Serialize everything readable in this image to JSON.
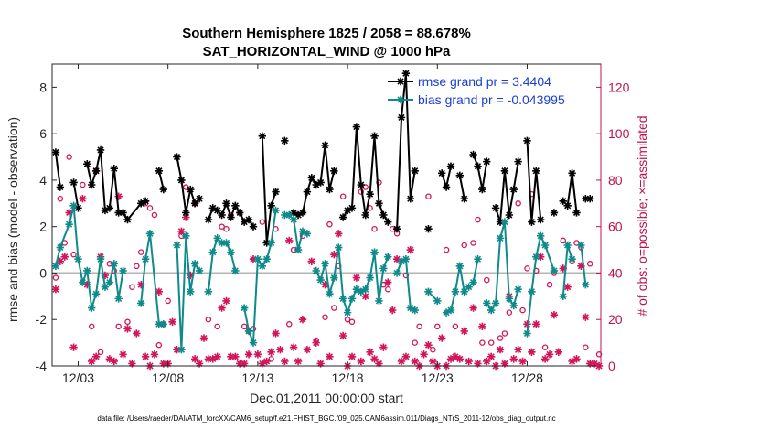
{
  "chart_data": {
    "type": "line",
    "title": "Southern Hemisphere 1825 / 2058 = 88.678%",
    "subtitle": "SAT_HORIZONTAL_WIND @ 1000 hPa",
    "xlabel": "Dec.01,2011 00:00:00 start",
    "ylabel": "rmse and bias (model - observation)",
    "y2label": "# of obs: o=possible; ×=assimilated",
    "footnote": "data file: /Users/raeder/DAI/ATM_forcXX/CAM6_setup/f.e21.FHIST_BGC.f09_025.CAM6assim.011/Diags_NTrS_2011-12/obs_diag_output.nc",
    "xlim": [
      1.55,
      32.1
    ],
    "ylim": [
      -4,
      9
    ],
    "y2lim": [
      0,
      130
    ],
    "xticks": [
      3,
      8,
      13,
      18,
      23,
      28
    ],
    "xticklabels": [
      "12/03",
      "12/08",
      "12/13",
      "12/18",
      "12/23",
      "12/28"
    ],
    "yticks": [
      -4,
      -2,
      0,
      2,
      4,
      6,
      8
    ],
    "y2ticks": [
      0,
      20,
      40,
      60,
      80,
      100,
      120
    ],
    "legend_position": "top-right",
    "colors": {
      "rmse": "#000000",
      "bias": "#0f8a8a",
      "obs": "#d4145a",
      "zero": "#b4b4b4",
      "legend_text": "#1a3fd6",
      "right_axis": "#c0104f"
    },
    "series": [
      {
        "name": "rmse grand pr = 3.4404",
        "color": "#000000",
        "x": [
          1.75,
          2.0,
          2.5,
          2.75,
          3.0,
          3.25,
          3.5,
          3.75,
          4.0,
          4.25,
          4.5,
          4.75,
          5.0,
          5.25,
          5.5,
          5.75,
          6.5,
          6.75,
          7.0,
          7.5,
          7.75,
          8.0,
          8.5,
          8.75,
          9.0,
          9.25,
          9.5,
          9.75,
          10.0,
          10.25,
          10.5,
          10.75,
          11.0,
          11.25,
          11.5,
          11.75,
          12.0,
          12.25,
          12.5,
          12.75,
          13.0,
          13.25,
          13.5,
          13.75,
          14.0,
          14.25,
          14.5,
          14.75,
          15.0,
          15.25,
          15.5,
          15.75,
          16.0,
          16.25,
          16.5,
          16.75,
          17.0,
          17.25,
          17.5,
          17.75,
          18.0,
          18.25,
          18.5,
          18.75,
          19.0,
          19.25,
          19.5,
          19.75,
          20.0,
          20.25,
          20.5,
          20.75,
          21.0,
          21.25,
          21.5,
          21.75,
          22.0,
          22.5,
          23.0,
          23.25,
          23.5,
          23.75,
          24.0,
          24.25,
          24.5,
          24.75,
          25.0,
          25.25,
          25.5,
          25.75,
          26.0,
          26.25,
          26.5,
          26.75,
          27.0,
          27.25,
          27.5,
          27.75,
          28.0,
          28.25,
          28.5,
          28.75,
          29.0,
          29.5,
          29.75,
          30.0,
          30.25,
          30.5,
          30.75,
          31.0,
          31.25,
          31.5,
          31.75
        ],
        "values": [
          5.2,
          3.7,
          null,
          3.9,
          2.8,
          null,
          4.7,
          3.8,
          4.4,
          5.3,
          2.7,
          2.8,
          4.5,
          2.6,
          2.6,
          2.3,
          3.0,
          3.1,
          null,
          4.4,
          3.6,
          null,
          5.0,
          4.0,
          2.6,
          3.6,
          3.0,
          3.2,
          null,
          2.3,
          2.8,
          2.7,
          2.5,
          3.0,
          2.4,
          2.9,
          2.6,
          2.2,
          2.3,
          2.0,
          null,
          5.9,
          1.3,
          2.9,
          3.5,
          null,
          5.7,
          null,
          2.6,
          2.5,
          2.6,
          3.5,
          4.1,
          3.8,
          3.9,
          5.5,
          3.6,
          4.4,
          null,
          2.4,
          2.7,
          2.8,
          6.3,
          3.8,
          2.5,
          3.4,
          5.9,
          3.0,
          2.5,
          2.2,
          null,
          1.9,
          6.7,
          8.6,
          3.2,
          4.4,
          null,
          1.9,
          null,
          4.3,
          3.7,
          4.6,
          null,
          4.2,
          3.2,
          null,
          5.1,
          4.6,
          3.6,
          4.8,
          null,
          2.8,
          2.2,
          4.4,
          2.5,
          3.6,
          4.8,
          null,
          5.7,
          2.2,
          4.4,
          2.3,
          null,
          2.6,
          null,
          3.1,
          2.9,
          4.3,
          2.6,
          null,
          3.2,
          3.2,
          null
        ],
        "marker": "*",
        "linewidth": 2
      },
      {
        "name": "bias grand pr = -0.043995",
        "color": "#0f8a8a",
        "x": [
          1.75,
          2.0,
          2.5,
          2.75,
          3.0,
          3.25,
          3.5,
          3.75,
          4.0,
          4.25,
          4.5,
          4.75,
          5.0,
          5.25,
          5.5,
          5.75,
          6.5,
          6.75,
          7.0,
          7.5,
          7.75,
          8.0,
          8.5,
          8.75,
          9.0,
          9.25,
          9.5,
          9.75,
          10.0,
          10.25,
          10.5,
          10.75,
          11.0,
          11.25,
          11.5,
          11.75,
          12.0,
          12.25,
          12.5,
          12.75,
          13.0,
          13.25,
          13.5,
          13.75,
          14.0,
          14.25,
          14.5,
          14.75,
          15.0,
          15.25,
          15.5,
          15.75,
          16.0,
          16.25,
          16.5,
          16.75,
          17.0,
          17.25,
          17.5,
          17.75,
          18.0,
          18.25,
          18.5,
          18.75,
          19.0,
          19.25,
          19.5,
          19.75,
          20.0,
          20.25,
          20.5,
          20.75,
          21.0,
          21.25,
          21.5,
          21.75,
          22.0,
          22.5,
          23.0,
          23.25,
          23.5,
          23.75,
          24.0,
          24.25,
          24.5,
          24.75,
          25.0,
          25.25,
          25.5,
          25.75,
          26.0,
          26.25,
          26.5,
          26.75,
          27.0,
          27.25,
          27.5,
          27.75,
          28.0,
          28.25,
          28.5,
          28.75,
          29.0,
          29.5,
          29.75,
          30.0,
          30.25,
          30.5,
          30.75,
          31.0,
          31.25,
          31.5,
          31.75
        ],
        "values": [
          0.3,
          1.1,
          2.1,
          2.9,
          0.6,
          -0.4,
          0.1,
          -1.5,
          -0.9,
          0.6,
          -0.6,
          -0.4,
          0.4,
          -1.1,
          0.1,
          null,
          -1.3,
          0.6,
          1.7,
          -2.2,
          -2.2,
          null,
          1.2,
          -3.3,
          1.6,
          -0.8,
          0.4,
          0.1,
          null,
          -0.8,
          0.9,
          1.5,
          1.3,
          1.3,
          0.9,
          0.1,
          null,
          -1.5,
          -2.5,
          -3.0,
          0.6,
          0.3,
          0.6,
          1.3,
          2.7,
          null,
          2.5,
          2.5,
          2.3,
          1.0,
          1.8,
          1.7,
          null,
          0.1,
          -0.3,
          0.4,
          -0.9,
          -0.2,
          1.1,
          -1.1,
          -1.7,
          -1.1,
          -0.7,
          -0.8,
          -0.7,
          -0.2,
          0.9,
          -1.2,
          0.2,
          0.7,
          null,
          0.0,
          0.5,
          0.6,
          -1.5,
          -1.6,
          null,
          -0.8,
          -1.2,
          null,
          -1.7,
          -1.6,
          -0.8,
          0.3,
          -0.8,
          -0.6,
          -0.4,
          0.6,
          null,
          -1.3,
          -1.6,
          -1.3,
          1.5,
          2.2,
          -1.1,
          -1.4,
          -0.7,
          null,
          -2.6,
          -0.8,
          0.7,
          1.6,
          1.2,
          0.1,
          null,
          -1.0,
          1.2,
          0.6,
          null,
          1.2,
          -0.5,
          null,
          null
        ],
        "marker": "*",
        "linewidth": 2
      }
    ],
    "obs_possible": {
      "x": [
        1.75,
        2.0,
        2.25,
        2.5,
        2.75,
        3.25,
        3.75,
        4.0,
        4.25,
        4.75,
        5.0,
        5.25,
        5.75,
        6.0,
        6.25,
        6.5,
        6.75,
        7.0,
        7.25,
        7.5,
        7.75,
        8.0,
        8.75,
        9.0,
        9.5,
        10.25,
        10.75,
        11.0,
        11.25,
        11.5,
        12.0,
        12.25,
        12.5,
        12.75,
        13.25,
        13.75,
        14.0,
        14.75,
        15.0,
        15.5,
        16.25,
        16.75,
        17.0,
        17.25,
        17.5,
        17.75,
        18.0,
        18.25,
        18.75,
        19.0,
        19.25,
        19.5,
        19.75,
        20.0,
        20.25,
        20.5,
        20.75,
        21.25,
        21.75,
        22.0,
        22.5,
        22.75,
        23.0,
        23.5,
        24.0,
        24.5,
        25.0,
        25.25,
        25.5,
        25.75,
        26.0,
        26.5,
        26.75,
        27.0,
        27.5,
        27.75,
        28.0,
        28.25,
        28.5,
        29.0,
        29.25,
        29.5,
        30.0,
        30.5,
        30.75,
        31.0,
        31.25,
        31.5,
        32.0
      ],
      "values": [
        38,
        72,
        53,
        90,
        48,
        78,
        17,
        84,
        6,
        44,
        41,
        17,
        19,
        34,
        43,
        49,
        70,
        68,
        65,
        9,
        18,
        28,
        56,
        77,
        70,
        20,
        17,
        60,
        59,
        65,
        66,
        17,
        15,
        16,
        62,
        3,
        59,
        18,
        50,
        56,
        11,
        21,
        61,
        25,
        43,
        73,
        20,
        19,
        75,
        77,
        68,
        59,
        79,
        35,
        33,
        59,
        57,
        39,
        10,
        17,
        73,
        7,
        17,
        50,
        17,
        52,
        53,
        63,
        10,
        37,
        10,
        12,
        14,
        23,
        70,
        24,
        42,
        74,
        41,
        8,
        35,
        40,
        54,
        45,
        53,
        51,
        8,
        44,
        5
      ]
    },
    "obs_assimilated": {
      "x": [
        1.75,
        2.0,
        2.25,
        2.5,
        2.75,
        3.25,
        3.5,
        3.75,
        4.0,
        4.25,
        4.5,
        4.75,
        5.0,
        5.25,
        5.5,
        5.75,
        6.0,
        6.25,
        6.5,
        6.75,
        7.0,
        7.25,
        7.5,
        7.75,
        8.0,
        8.25,
        8.5,
        8.75,
        9.0,
        9.25,
        9.5,
        9.75,
        10.0,
        10.25,
        10.5,
        10.75,
        11.0,
        11.25,
        11.5,
        11.75,
        12.0,
        12.25,
        12.5,
        12.75,
        13.0,
        13.25,
        13.5,
        13.75,
        14.0,
        14.25,
        14.5,
        14.75,
        15.0,
        15.25,
        15.5,
        15.75,
        16.0,
        16.25,
        16.5,
        16.75,
        17.0,
        17.25,
        17.5,
        17.75,
        18.0,
        18.25,
        18.5,
        18.75,
        19.0,
        19.25,
        19.5,
        19.75,
        20.0,
        20.25,
        20.5,
        20.75,
        21.0,
        21.25,
        21.5,
        21.75,
        22.0,
        22.25,
        22.5,
        22.75,
        23.0,
        23.25,
        23.5,
        23.75,
        24.0,
        24.25,
        24.5,
        24.75,
        25.0,
        25.25,
        25.5,
        25.75,
        26.0,
        26.25,
        26.5,
        26.75,
        27.0,
        27.25,
        27.5,
        27.75,
        28.0,
        28.25,
        28.5,
        28.75,
        29.0,
        29.25,
        29.5,
        29.75,
        30.0,
        30.25,
        30.5,
        30.75,
        31.0,
        31.25,
        31.5,
        31.75,
        32.0
      ],
      "values": [
        33,
        45,
        47,
        66,
        8,
        72,
        35,
        2,
        4,
        47,
        39,
        3,
        2,
        73,
        5,
        16,
        1,
        14,
        35,
        4,
        0,
        5,
        32,
        1,
        1,
        19,
        7,
        58,
        64,
        39,
        3,
        1,
        12,
        3,
        3,
        4,
        25,
        28,
        4,
        4,
        1,
        1,
        5,
        46,
        5,
        1,
        2,
        6,
        14,
        7,
        2,
        54,
        8,
        2,
        20,
        7,
        45,
        10,
        1,
        35,
        4,
        48,
        57,
        13,
        0,
        4,
        38,
        2,
        30,
        6,
        3,
        1,
        8,
        36,
        24,
        46,
        2,
        4,
        50,
        2,
        0,
        5,
        9,
        2,
        0,
        12,
        0,
        3,
        4,
        3,
        15,
        2,
        25,
        1,
        17,
        2,
        4,
        0,
        7,
        1,
        30,
        3,
        7,
        2,
        18,
        6,
        18,
        47,
        3,
        5,
        22,
        6,
        42,
        34,
        2,
        3,
        43,
        21,
        1,
        1,
        0
      ]
    }
  }
}
